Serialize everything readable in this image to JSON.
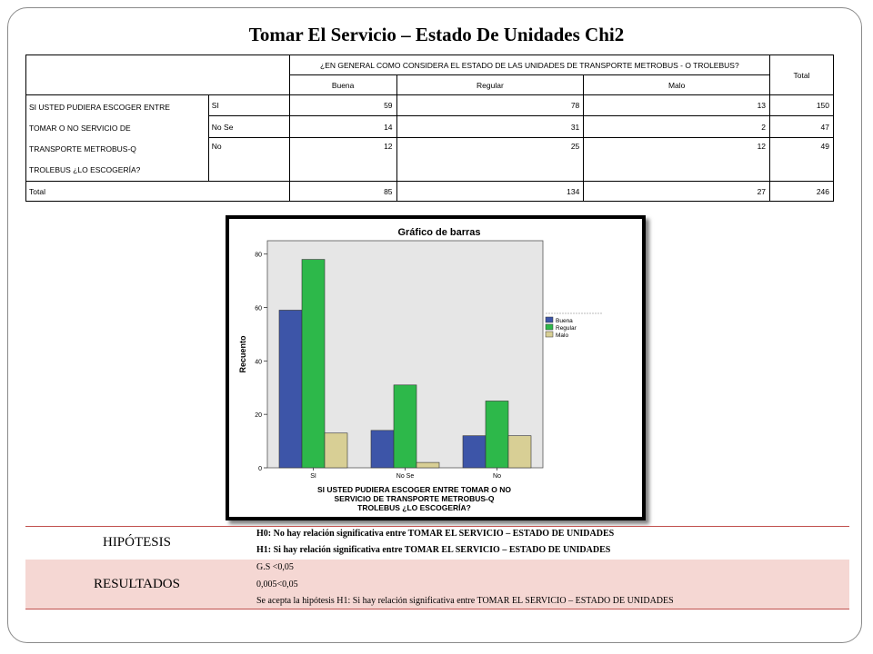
{
  "title": "Tomar El Servicio  – Estado De Unidades Chi2",
  "crosstab": {
    "column_question": "¿EN GENERAL COMO CONSIDERA EL ESTADO DE LAS UNIDADES DE TRANSPORTE METROBUS - O TROLEBUS?",
    "total_label": "Total",
    "columns": [
      "Buena",
      "Regular",
      "Malo"
    ],
    "row_question_lines": [
      "SI USTED PUDIERA ESCOGER ENTRE",
      "TOMAR O NO SERVICIO DE",
      "TRANSPORTE METROBUS-Q",
      "TROLEBUS ¿LO ESCOGERÍA?"
    ],
    "rows": [
      {
        "label": "SI",
        "values": [
          "59",
          "78",
          "13"
        ],
        "total": "150"
      },
      {
        "label": "No Se",
        "values": [
          "14",
          "31",
          "2"
        ],
        "total": "47"
      },
      {
        "label": "No",
        "values": [
          "12",
          "25",
          "12"
        ],
        "total": "49"
      }
    ],
    "total_row": {
      "label": "Total",
      "values": [
        "85",
        "134",
        "27"
      ],
      "total": "246"
    }
  },
  "chart_data": {
    "type": "bar",
    "title": "Gráfico de barras",
    "categories": [
      "SI",
      "No Se",
      "No"
    ],
    "series": [
      {
        "name": "Buena",
        "values": [
          59,
          14,
          12
        ],
        "color": "#3d55a8"
      },
      {
        "name": "Regular",
        "values": [
          78,
          31,
          25
        ],
        "color": "#2db84a"
      },
      {
        "name": "Malo",
        "values": [
          13,
          2,
          12
        ],
        "color": "#d8cf95"
      }
    ],
    "ylabel": "Recuento",
    "xlabel_lines": [
      "SI USTED PUDIERA ESCOGER ENTRE TOMAR O NO",
      "SERVICIO DE TRANSPORTE METROBUS-Q",
      "TROLEBUS ¿LO ESCOGERÍA?"
    ],
    "ylim": [
      0,
      85
    ],
    "yticks": [
      0,
      20,
      40,
      60,
      80
    ],
    "legend_position": "right",
    "plot_background": "#e6e6e6"
  },
  "hypothesis": {
    "label": "HIPÓTESIS",
    "h0": "H0: No  hay relación  significativa entre  TOMAR EL SERVICIO – ESTADO DE UNIDADES",
    "h1": "H1: Si hay relación  significativa entre  TOMAR EL SERVICIO – ESTADO DE UNIDADES"
  },
  "results": {
    "label": "RESULTADOS",
    "line1": "G.S <0,05",
    "line2": "0,005<0,05",
    "line3": "Se acepta la hipótesis H1: Si  hay relación  significativa entre TOMAR EL SERVICIO – ESTADO DE UNIDADES"
  }
}
